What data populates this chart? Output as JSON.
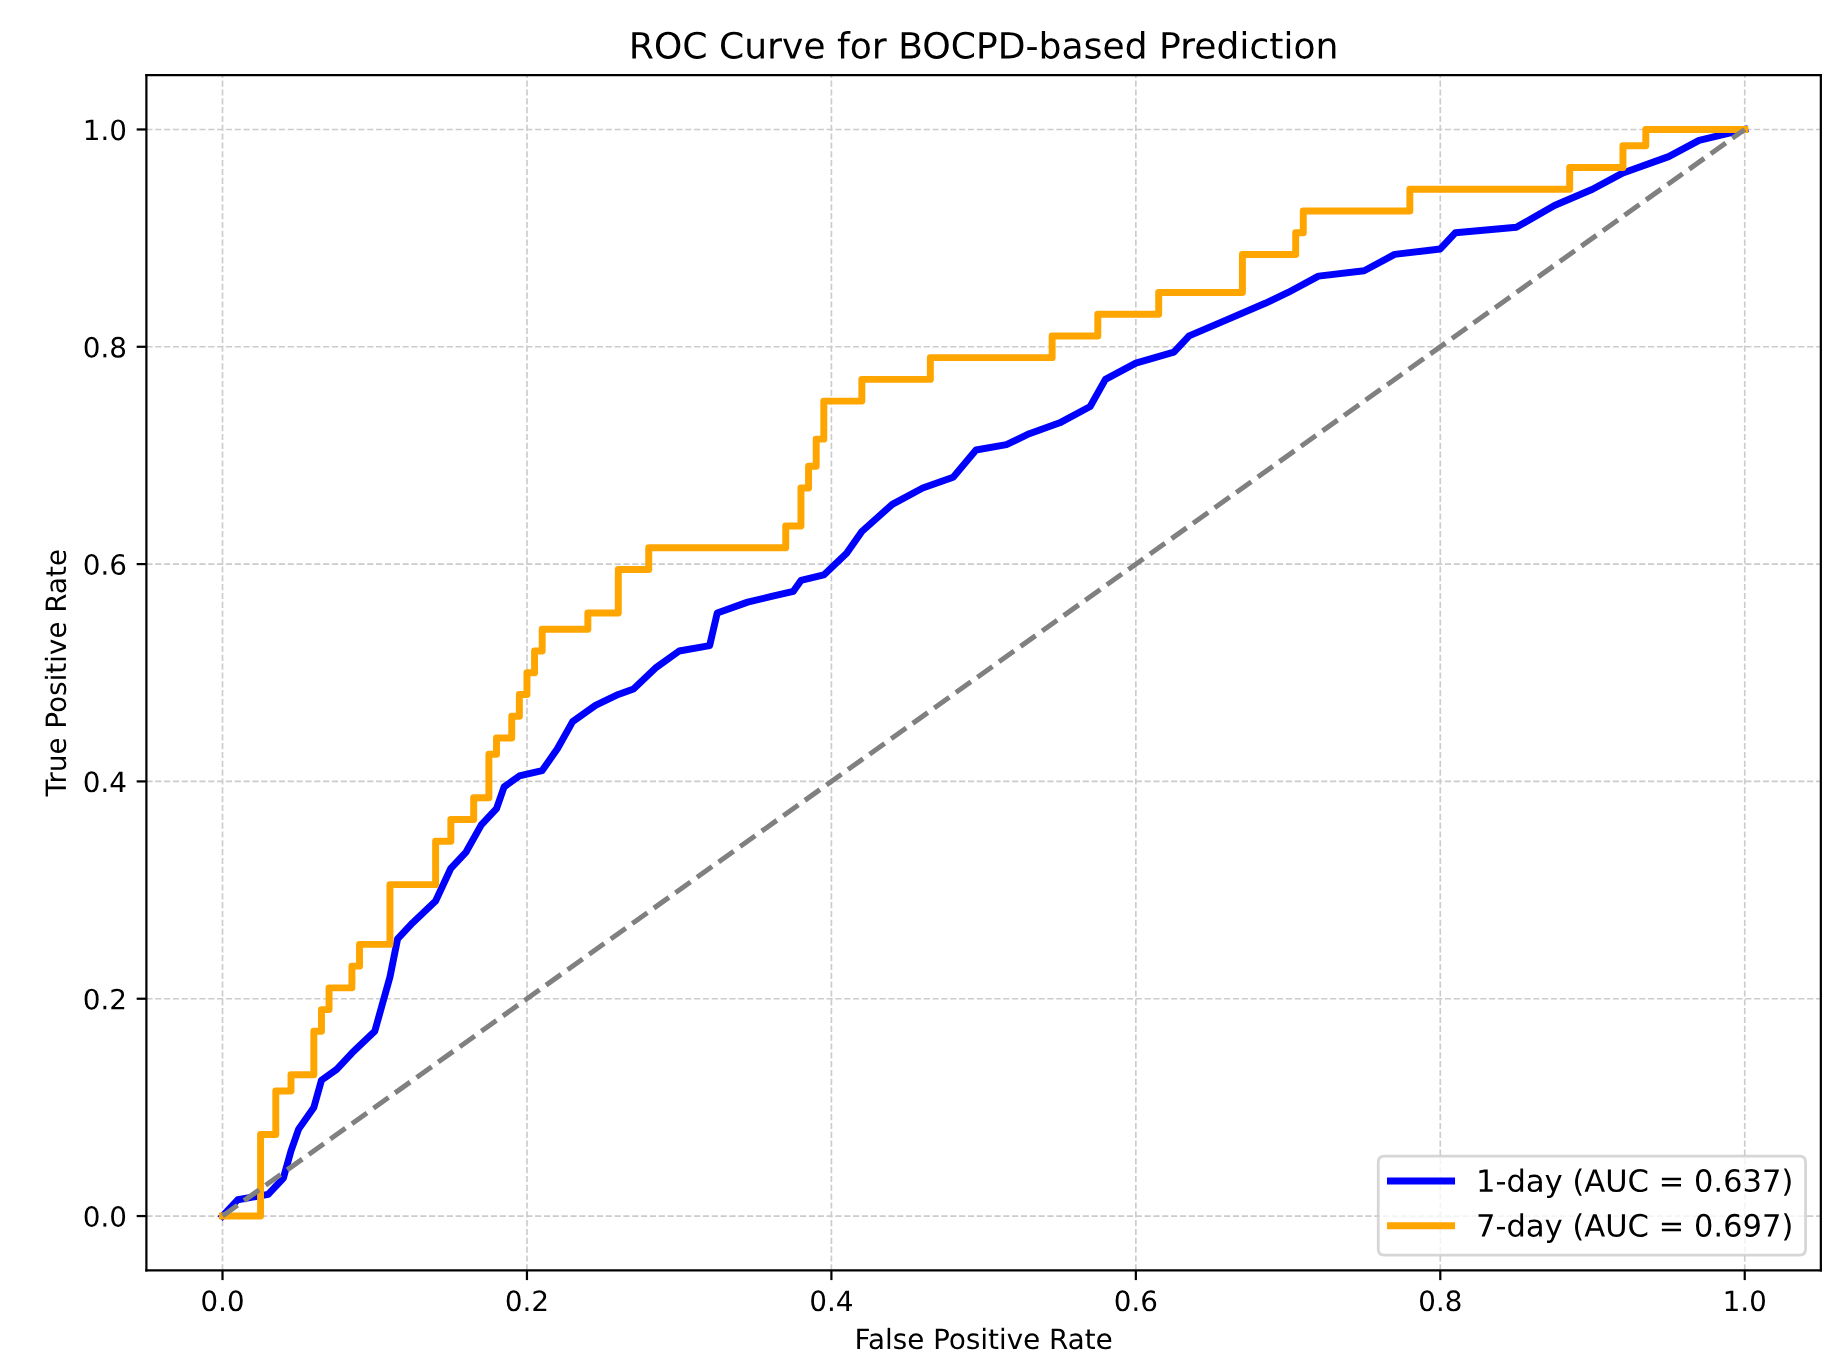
{
  "chart_data": {
    "type": "line",
    "title": "ROC Curve for BOCPD-based Prediction",
    "xlabel": "False Positive Rate",
    "ylabel": "True Positive Rate",
    "xlim": [
      -0.05,
      1.05
    ],
    "ylim": [
      -0.05,
      1.05
    ],
    "xticks": [
      {
        "value": 0,
        "label": "0.0"
      },
      {
        "value": 0.2,
        "label": "0.2"
      },
      {
        "value": 0.4,
        "label": "0.4"
      },
      {
        "value": 0.6,
        "label": "0.6"
      },
      {
        "value": 0.8,
        "label": "0.8"
      },
      {
        "value": 1,
        "label": "1.0"
      }
    ],
    "yticks": [
      {
        "value": 0,
        "label": "0.0"
      },
      {
        "value": 0.2,
        "label": "0.2"
      },
      {
        "value": 0.4,
        "label": "0.4"
      },
      {
        "value": 0.6,
        "label": "0.6"
      },
      {
        "value": 0.8,
        "label": "0.8"
      },
      {
        "value": 1,
        "label": "1.0"
      }
    ],
    "grid": true,
    "legend": "bottom right",
    "marker": "none",
    "series": [
      {
        "name": "1-day (AUC = 0.637)",
        "color": "#0000ff",
        "line_style": "solid",
        "x": [
          0,
          0.01,
          0.03,
          0.04,
          0.045,
          0.05,
          0.06,
          0.065,
          0.075,
          0.085,
          0.1,
          0.105,
          0.11,
          0.115,
          0.125,
          0.14,
          0.15,
          0.16,
          0.17,
          0.18,
          0.185,
          0.195,
          0.21,
          0.22,
          0.23,
          0.245,
          0.26,
          0.27,
          0.285,
          0.3,
          0.32,
          0.325,
          0.345,
          0.36,
          0.375,
          0.38,
          0.395,
          0.41,
          0.42,
          0.44,
          0.46,
          0.48,
          0.495,
          0.515,
          0.53,
          0.55,
          0.57,
          0.58,
          0.6,
          0.625,
          0.635,
          0.66,
          0.685,
          0.7,
          0.72,
          0.75,
          0.77,
          0.8,
          0.81,
          0.85,
          0.875,
          0.9,
          0.92,
          0.95,
          0.97,
          1
        ],
        "values": [
          0,
          0.015,
          0.02,
          0.035,
          0.06,
          0.08,
          0.1,
          0.125,
          0.135,
          0.15,
          0.17,
          0.195,
          0.22,
          0.255,
          0.27,
          0.29,
          0.32,
          0.335,
          0.36,
          0.375,
          0.395,
          0.405,
          0.41,
          0.43,
          0.455,
          0.47,
          0.48,
          0.485,
          0.505,
          0.52,
          0.525,
          0.555,
          0.565,
          0.57,
          0.575,
          0.585,
          0.59,
          0.61,
          0.63,
          0.655,
          0.67,
          0.68,
          0.705,
          0.71,
          0.72,
          0.73,
          0.745,
          0.77,
          0.785,
          0.795,
          0.81,
          0.825,
          0.84,
          0.85,
          0.865,
          0.87,
          0.885,
          0.89,
          0.905,
          0.91,
          0.93,
          0.945,
          0.96,
          0.975,
          0.99,
          1
        ]
      },
      {
        "name": "7-day (AUC = 0.697)",
        "color": "#ffa500",
        "line_style": "solid",
        "x": [
          0,
          0.025,
          0.025,
          0.035,
          0.035,
          0.045,
          0.045,
          0.06,
          0.06,
          0.065,
          0.065,
          0.07,
          0.07,
          0.085,
          0.085,
          0.09,
          0.09,
          0.11,
          0.11,
          0.14,
          0.14,
          0.15,
          0.15,
          0.165,
          0.165,
          0.175,
          0.175,
          0.18,
          0.18,
          0.19,
          0.19,
          0.195,
          0.195,
          0.2,
          0.2,
          0.205,
          0.205,
          0.21,
          0.21,
          0.24,
          0.24,
          0.26,
          0.26,
          0.28,
          0.28,
          0.37,
          0.37,
          0.38,
          0.38,
          0.385,
          0.385,
          0.39,
          0.39,
          0.395,
          0.395,
          0.42,
          0.42,
          0.465,
          0.465,
          0.545,
          0.545,
          0.575,
          0.575,
          0.615,
          0.615,
          0.67,
          0.67,
          0.705,
          0.705,
          0.71,
          0.71,
          0.78,
          0.78,
          0.885,
          0.885,
          0.92,
          0.92,
          0.935,
          0.935,
          1
        ],
        "values": [
          0,
          0,
          0.075,
          0.075,
          0.115,
          0.115,
          0.13,
          0.13,
          0.17,
          0.17,
          0.19,
          0.19,
          0.21,
          0.21,
          0.23,
          0.23,
          0.25,
          0.25,
          0.305,
          0.305,
          0.345,
          0.345,
          0.365,
          0.365,
          0.385,
          0.385,
          0.425,
          0.425,
          0.44,
          0.44,
          0.46,
          0.46,
          0.48,
          0.48,
          0.5,
          0.5,
          0.52,
          0.52,
          0.54,
          0.54,
          0.555,
          0.555,
          0.595,
          0.595,
          0.615,
          0.615,
          0.635,
          0.635,
          0.67,
          0.67,
          0.69,
          0.69,
          0.715,
          0.715,
          0.75,
          0.75,
          0.77,
          0.77,
          0.79,
          0.79,
          0.81,
          0.81,
          0.83,
          0.83,
          0.85,
          0.85,
          0.885,
          0.885,
          0.905,
          0.905,
          0.925,
          0.925,
          0.945,
          0.945,
          0.965,
          0.965,
          0.985,
          0.985,
          1,
          1
        ]
      },
      {
        "color": "#808080",
        "line_style": "dashed",
        "x": [
          0,
          1
        ],
        "values": [
          0,
          1
        ]
      }
    ]
  }
}
